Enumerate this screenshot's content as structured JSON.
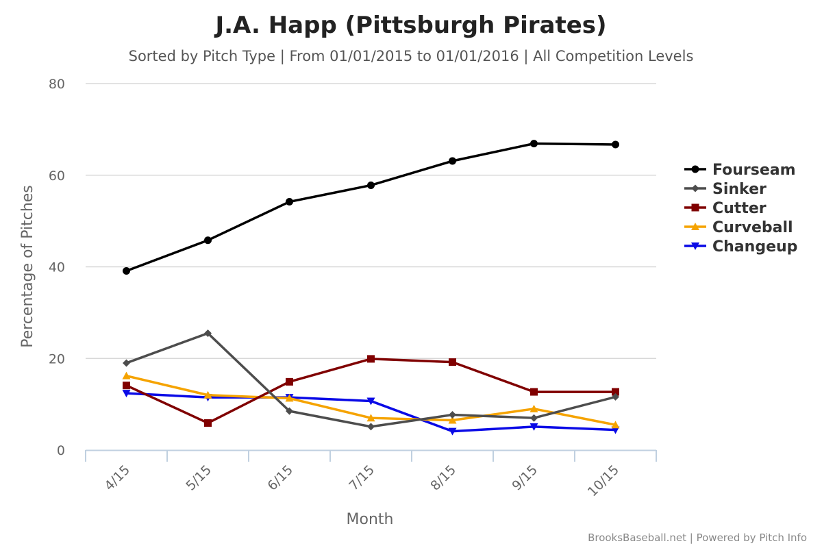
{
  "chart_data": {
    "type": "line",
    "title": "J.A. Happ (Pittsburgh Pirates)",
    "subtitle": "Sorted by Pitch Type | From 01/01/2015 to 01/01/2016 | All Competition Levels",
    "xlabel": "Month",
    "ylabel": "Percentage of Pitches",
    "categories": [
      "4/15",
      "5/15",
      "6/15",
      "7/15",
      "8/15",
      "9/15",
      "10/15"
    ],
    "ylim": [
      0,
      80
    ],
    "yticks": [
      0,
      20,
      40,
      60,
      80
    ],
    "grid": true,
    "legend_position": "right",
    "series": [
      {
        "name": "Fourseam",
        "color": "#000000",
        "marker": "circle",
        "values": [
          39.1,
          45.8,
          54.2,
          57.8,
          63.1,
          66.9,
          66.7
        ]
      },
      {
        "name": "Sinker",
        "color": "#4d4d4d",
        "marker": "diamond",
        "values": [
          19.0,
          25.5,
          8.5,
          5.1,
          7.7,
          7.0,
          11.6
        ]
      },
      {
        "name": "Cutter",
        "color": "#800000",
        "marker": "square",
        "values": [
          14.1,
          5.9,
          14.9,
          19.9,
          19.2,
          12.7,
          12.7
        ]
      },
      {
        "name": "Curveball",
        "color": "#f5a300",
        "marker": "triangle",
        "values": [
          16.2,
          12.0,
          11.3,
          7.0,
          6.5,
          9.0,
          5.5
        ]
      },
      {
        "name": "Changeup",
        "color": "#0a0ae6",
        "marker": "triangle-down",
        "values": [
          12.4,
          11.5,
          11.5,
          10.7,
          4.1,
          5.1,
          4.4
        ]
      }
    ]
  },
  "credits": "BrooksBaseball.net | Powered by Pitch Info"
}
